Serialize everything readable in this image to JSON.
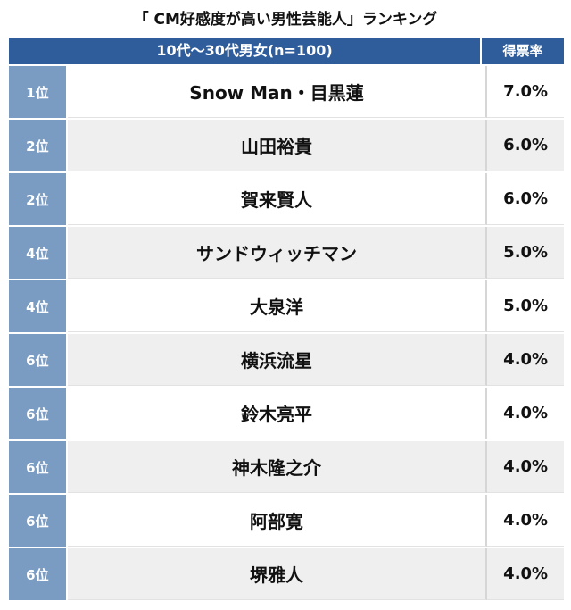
{
  "chart_data": {
    "type": "table",
    "title": "「 CM好感度が高い男性芸能人」ランキング",
    "header": {
      "group": "10代〜30代男女(n=100)",
      "rate": "得票率"
    },
    "rows": [
      {
        "rank": "1位",
        "name": "Snow Man・目黒蓮",
        "rate": "7.0%"
      },
      {
        "rank": "2位",
        "name": "山田裕貴",
        "rate": "6.0%"
      },
      {
        "rank": "2位",
        "name": "賀来賢人",
        "rate": "6.0%"
      },
      {
        "rank": "4位",
        "name": "サンドウィッチマン",
        "rate": "5.0%"
      },
      {
        "rank": "4位",
        "name": "大泉洋",
        "rate": "5.0%"
      },
      {
        "rank": "6位",
        "name": "横浜流星",
        "rate": "4.0%"
      },
      {
        "rank": "6位",
        "name": "鈴木亮平",
        "rate": "4.0%"
      },
      {
        "rank": "6位",
        "name": "神木隆之介",
        "rate": "4.0%"
      },
      {
        "rank": "6位",
        "name": "阿部寛",
        "rate": "4.0%"
      },
      {
        "rank": "6位",
        "name": "堺雅人",
        "rate": "4.0%"
      }
    ]
  },
  "colors": {
    "header": "#2f5d9c",
    "rank_cell": "#7a9cc3",
    "row_alt": "#efefef"
  }
}
